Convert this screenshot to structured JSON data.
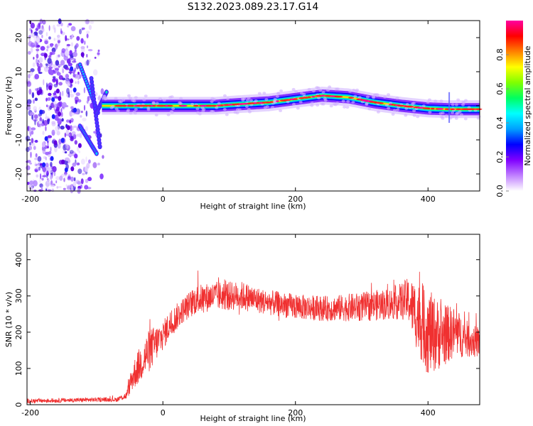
{
  "title": "S132.2023.089.23.17.G14",
  "chart_data": [
    {
      "type": "heatmap",
      "xlabel": "Height of straight line (km)",
      "ylabel": "Frequency (Hz)",
      "xlim": [
        -205,
        478
      ],
      "ylim": [
        -25,
        25
      ],
      "x_ticks": [
        -200,
        0,
        200,
        400
      ],
      "y_ticks": [
        -20,
        -10,
        0,
        10,
        20
      ],
      "colorbar": {
        "label": "Normalized spectral amplitude",
        "range": [
          0,
          1
        ],
        "ticks": [
          0.0,
          0.2,
          0.4,
          0.6,
          0.8
        ],
        "colors": [
          "#ffffff",
          "#c080ff",
          "#8000ff",
          "#0000ff",
          "#00a0ff",
          "#00ffff",
          "#00ff60",
          "#80ff00",
          "#ffff00",
          "#ff8000",
          "#ff0000",
          "#ff00a0"
        ]
      },
      "ridge_frequency_hz": {
        "x": [
          -90,
          -60,
          0,
          80,
          100,
          160,
          200,
          240,
          280,
          320,
          360,
          400,
          430,
          478
        ],
        "freq": [
          0,
          0,
          0,
          0,
          0.3,
          1,
          2,
          3,
          2.5,
          1,
          0,
          -0.8,
          -1,
          -1
        ]
      },
      "grid": false
    },
    {
      "type": "line",
      "xlabel": "Height of straight line (km)",
      "ylabel": "SNR (10 * v/v)",
      "xlim": [
        -205,
        478
      ],
      "ylim": [
        0,
        470
      ],
      "x_ticks": [
        -200,
        0,
        200,
        400
      ],
      "y_ticks": [
        0,
        100,
        200,
        300,
        400
      ],
      "series": [
        {
          "color": "#f03030",
          "x": [
            -205,
            -150,
            -100,
            -70,
            -55,
            -45,
            -35,
            -20,
            -10,
            0,
            10,
            30,
            50,
            80,
            120,
            150,
            200,
            250,
            300,
            350,
            370,
            385,
            400,
            420,
            440,
            460,
            478
          ],
          "mean": [
            10,
            12,
            14,
            14,
            25,
            80,
            110,
            150,
            170,
            190,
            220,
            260,
            290,
            300,
            300,
            285,
            270,
            265,
            270,
            280,
            290,
            240,
            200,
            190,
            200,
            180,
            170
          ],
          "spread": [
            6,
            6,
            6,
            6,
            10,
            40,
            50,
            60,
            50,
            40,
            40,
            35,
            40,
            40,
            40,
            35,
            35,
            35,
            40,
            45,
            60,
            100,
            120,
            90,
            70,
            50,
            40
          ]
        }
      ],
      "grid": false
    }
  ]
}
